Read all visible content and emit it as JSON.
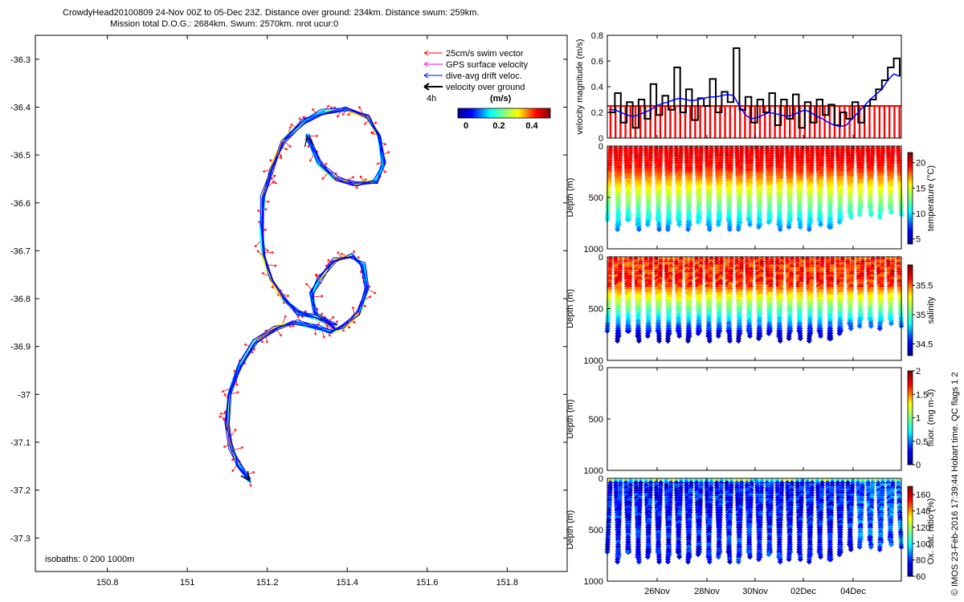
{
  "header": {
    "line1": "CrowdyHead20100809 24-Nov 00Z to 05-Dec 23Z. Distance over ground: 234km. Distance swum: 259km.",
    "line2": "Mission total D.O.G.: 2684km. Swum: 2570km. nrot ucur:0"
  },
  "side_credit": "© IMOS 23-Feb-2016 17:39:44 Hobart time. QC flags 1  2",
  "colors": {
    "swim": "#ff0000",
    "gps": "#ff00ff",
    "drift": "#0000ff",
    "vog": "#000000",
    "threshold": "#ff0000"
  },
  "chart_data": [
    {
      "type": "line",
      "id": "track_map",
      "xlim": [
        150.62,
        151.95
      ],
      "ylim": [
        -37.37,
        -36.25
      ],
      "xticks": [
        "150.8",
        "151",
        "151.2",
        "151.4",
        "151.6",
        "151.8"
      ],
      "yticks": [
        "-36.3",
        "-36.4",
        "-36.5",
        "-36.6",
        "-36.7",
        "-36.8",
        "-36.9",
        "-37",
        "-37.1",
        "-37.2",
        "-37.3"
      ],
      "legend": {
        "items": [
          "25cm/s swim vector",
          "GPS surface velocity",
          "dive-avg drift veloc.",
          "velocity over ground"
        ],
        "time_label": "4h",
        "colorbar_title": "(m/s)",
        "colorbar_ticks": [
          "0",
          "0.2",
          "0.4"
        ]
      },
      "isobaths_label": "isobaths: 0   200   1000m",
      "track": [
        [
          151.3,
          -36.46
        ],
        [
          151.33,
          -36.52
        ],
        [
          151.37,
          -36.55
        ],
        [
          151.42,
          -36.56
        ],
        [
          151.47,
          -36.555
        ],
        [
          151.49,
          -36.52
        ],
        [
          151.48,
          -36.46
        ],
        [
          151.45,
          -36.42
        ],
        [
          151.4,
          -36.405
        ],
        [
          151.34,
          -36.41
        ],
        [
          151.29,
          -36.43
        ],
        [
          151.24,
          -36.47
        ],
        [
          151.21,
          -36.53
        ],
        [
          151.19,
          -36.59
        ],
        [
          151.185,
          -36.65
        ],
        [
          151.19,
          -36.71
        ],
        [
          151.21,
          -36.76
        ],
        [
          151.24,
          -36.8
        ],
        [
          151.28,
          -36.83
        ],
        [
          151.32,
          -36.84
        ],
        [
          151.35,
          -36.85
        ],
        [
          151.37,
          -36.86
        ],
        [
          151.32,
          -36.83
        ],
        [
          151.31,
          -36.79
        ],
        [
          151.33,
          -36.76
        ],
        [
          151.37,
          -36.72
        ],
        [
          151.41,
          -36.71
        ],
        [
          151.44,
          -36.73
        ],
        [
          151.45,
          -36.78
        ],
        [
          151.43,
          -36.83
        ],
        [
          151.39,
          -36.86
        ],
        [
          151.36,
          -36.87
        ],
        [
          151.32,
          -36.86
        ],
        [
          151.27,
          -36.85
        ],
        [
          151.22,
          -36.86
        ],
        [
          151.17,
          -36.89
        ],
        [
          151.13,
          -36.94
        ],
        [
          151.105,
          -37.0
        ],
        [
          151.1,
          -37.06
        ],
        [
          151.11,
          -37.11
        ],
        [
          151.13,
          -37.15
        ],
        [
          151.155,
          -37.18
        ]
      ]
    },
    {
      "type": "line",
      "id": "velocity_panel",
      "ylabel": "velocity magnitude (m/s)",
      "ylim": [
        0,
        0.8
      ],
      "yticks": [
        "0",
        "0.2",
        "0.4",
        "0.6",
        "0.8"
      ],
      "threshold": 0.25,
      "series": [
        {
          "values": [
            0.2,
            0.35,
            0.12,
            0.28,
            0.08,
            0.3,
            0.15,
            0.42,
            0.18,
            0.33,
            0.22,
            0.55,
            0.2,
            0.38,
            0.14,
            0.31,
            0.25,
            0.46,
            0.2,
            0.36,
            0.28,
            0.7,
            0.22,
            0.32,
            0.12,
            0.3,
            0.2,
            0.35,
            0.1,
            0.3,
            0.15,
            0.34,
            0.08,
            0.28,
            0.12,
            0.3,
            0.18,
            0.26,
            0.1,
            0.2,
            0.15,
            0.28,
            0.12,
            0.25,
            0.3,
            0.38,
            0.45,
            0.55,
            0.62,
            0.48
          ]
        },
        {
          "values": [
            0.22,
            0.22,
            0.2,
            0.18,
            0.17,
            0.18,
            0.2,
            0.22,
            0.25,
            0.27,
            0.28,
            0.3,
            0.31,
            0.3,
            0.29,
            0.3,
            0.31,
            0.32,
            0.32,
            0.33,
            0.34,
            0.33,
            0.25,
            0.18,
            0.15,
            0.16,
            0.18,
            0.2,
            0.19,
            0.18,
            0.17,
            0.18,
            0.2,
            0.22,
            0.2,
            0.17,
            0.15,
            0.12,
            0.1,
            0.09,
            0.1,
            0.15,
            0.2,
            0.25,
            0.3,
            0.34,
            0.38,
            0.45,
            0.5,
            0.48
          ]
        }
      ]
    },
    {
      "type": "heatmap",
      "id": "temperature_panel",
      "ylabel": "Depth (m)",
      "yticks": [
        "0",
        "500",
        "1000"
      ],
      "colorbar_label": "temperature (°C)",
      "colorbar_ticks": [
        "5",
        "10",
        "15",
        "20"
      ],
      "clim": [
        4,
        22
      ]
    },
    {
      "type": "heatmap",
      "id": "salinity_panel",
      "ylabel": "Depth (m)",
      "yticks": [
        "0",
        "500",
        "1000"
      ],
      "colorbar_label": "salinity",
      "colorbar_ticks": [
        "34.5",
        "35",
        "35.5"
      ],
      "clim": [
        34.3,
        35.85
      ]
    },
    {
      "type": "heatmap",
      "id": "fluorescence_panel",
      "ylabel": "Depth (m)",
      "yticks": [
        "0",
        "500",
        "1000"
      ],
      "colorbar_label": "fluor. (mg m-3)",
      "colorbar_ticks": [
        "0",
        "0.5",
        "1",
        "1.5",
        "2"
      ],
      "clim": [
        0,
        2
      ]
    },
    {
      "type": "heatmap",
      "id": "oxygen_panel",
      "ylabel": "Depth (m)",
      "yticks": [
        "0",
        "500",
        "1000"
      ],
      "xticks": [
        "26Nov",
        "28Nov",
        "30Nov",
        "02Dec",
        "04Dec"
      ],
      "colorbar_label": "Ox. sat. ratio (%)",
      "colorbar_ticks": [
        "60",
        "80",
        "100",
        "120",
        "140",
        "160"
      ],
      "clim": [
        60,
        170
      ]
    }
  ]
}
